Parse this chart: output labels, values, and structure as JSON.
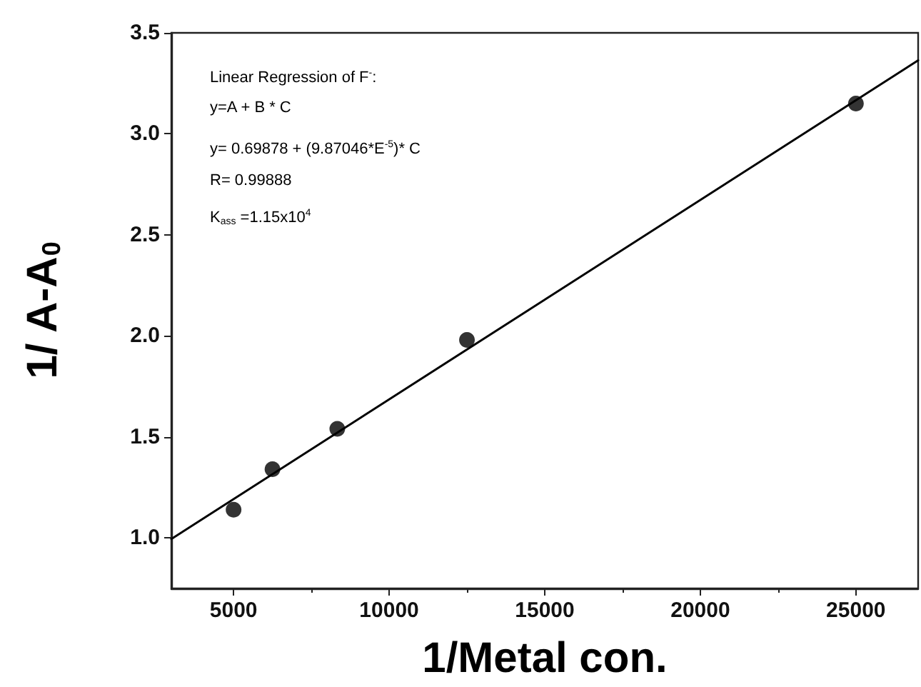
{
  "chart_data": {
    "type": "scatter",
    "xlabel": "1/Metal con.",
    "ylabel": "1/ A-A$_{0}$",
    "xlim": [
      3000,
      27000
    ],
    "xticks": [
      5000,
      10000,
      15000,
      20000,
      25000
    ],
    "ylim": [
      0.75,
      3.5
    ],
    "yticks": [
      {
        "value": 1,
        "label": "1.0"
      },
      1.5,
      {
        "value": 2,
        "label": "2.0"
      },
      2.5,
      {
        "value": 3,
        "label": "3.0"
      },
      3.5
    ],
    "grid": false,
    "marker": "circle",
    "annotations": [
      "Linear Regression of F$^{-}$:",
      "y=A + B * C",
      "y= 0.69878 + (9.87046*E$^{-5}$)* C",
      "R= 0.99888",
      "K$_{ass}$ =1.15x10$^{4}$"
    ],
    "series": [
      {
        "color": "#000000",
        "x": [
          5000,
          6250,
          8333,
          12500,
          25000
        ],
        "values": [
          1.14,
          1.34,
          1.54,
          1.98,
          3.15
        ]
      },
      {
        "type": "line",
        "color": "#000000",
        "marker": "none",
        "line_style": "solid",
        "x": [
          3000,
          27000
        ],
        "values": [
          0.995,
          3.364
        ]
      }
    ]
  }
}
